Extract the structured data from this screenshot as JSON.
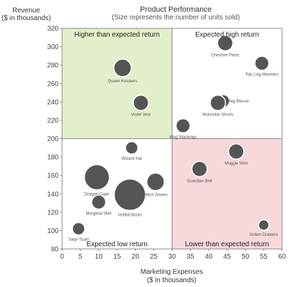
{
  "chart_data": {
    "type": "scatter",
    "title": "Product Performance",
    "subtitle": "(Size represents the number of units sold)",
    "xlabel": "Marketing Expenses",
    "xlabel_unit": "($ in thousands)",
    "ylabel": "Revenue",
    "ylabel_unit": "($ in thousands)",
    "xlim": [
      0,
      60
    ],
    "ylim": [
      80,
      320
    ],
    "xticks": [
      "0",
      "5",
      "10",
      "15",
      "20",
      "25",
      "30",
      "35",
      "40",
      "45",
      "50",
      "55",
      "60"
    ],
    "yticks": [
      "80",
      "100",
      "120",
      "140",
      "160",
      "180",
      "200",
      "220",
      "240",
      "260",
      "280",
      "300",
      "320"
    ],
    "quadrants": [
      {
        "label": "Higher than expected return",
        "color": "#e2efca"
      },
      {
        "label": "Expected high return",
        "color": "#ffffff"
      },
      {
        "label": "Expected low return",
        "color": "#ffffff"
      },
      {
        "label": "Lower than expected return",
        "color": "#f7d9dc"
      }
    ],
    "bubble_color": "#555555",
    "points": [
      {
        "name": "Queen Knickers",
        "x": 16.5,
        "y": 277,
        "size": 3
      },
      {
        "name": "Violet Vest",
        "x": 21.5,
        "y": 239,
        "size": 2
      },
      {
        "name": "Cheshire Pants",
        "x": 44.5,
        "y": 304,
        "size": 2
      },
      {
        "name": "Tolo Leg Warmers",
        "x": 54.5,
        "y": 282,
        "size": 1.5
      },
      {
        "name": "Hag Blouse",
        "x": 44,
        "y": 241,
        "size": 1
      },
      {
        "name": "Munchkin Shorts",
        "x": 42.5,
        "y": 239,
        "size": 2
      },
      {
        "name": "King Stockings",
        "x": 33,
        "y": 214,
        "size": 1.5
      },
      {
        "name": "Wizard Hat",
        "x": 19,
        "y": 190,
        "size": 1
      },
      {
        "name": "Dragon Cape",
        "x": 9.5,
        "y": 158,
        "size": 8
      },
      {
        "name": "Witch Gloves",
        "x": 25.5,
        "y": 153,
        "size": 3
      },
      {
        "name": "Morgana Skirt",
        "x": 10,
        "y": 131,
        "size": 1.5
      },
      {
        "name": "Hobbit Boots",
        "x": 18.5,
        "y": 139,
        "size": 14
      },
      {
        "name": "Satyr Scarf",
        "x": 4.5,
        "y": 102,
        "size": 1
      },
      {
        "name": "Muggle Shirt",
        "x": 47.5,
        "y": 186,
        "size": 2
      },
      {
        "name": "Guardian Belt",
        "x": 37.5,
        "y": 167,
        "size": 2
      },
      {
        "name": "Golem Drawers",
        "x": 55,
        "y": 106,
        "size": 0.5
      }
    ]
  }
}
